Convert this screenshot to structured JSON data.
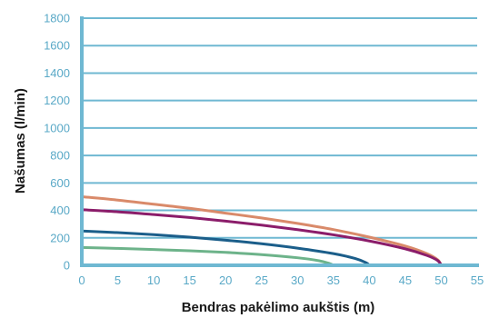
{
  "chart_data": {
    "type": "line",
    "title": "",
    "xlabel": "Bendras pakėlimo aukštis (m)",
    "ylabel": "Našumas (l/min)",
    "xlim": [
      0,
      55
    ],
    "ylim": [
      0,
      1800
    ],
    "xticks": [
      "0",
      "5",
      "10",
      "15",
      "20",
      "25",
      "30",
      "35",
      "40",
      "45",
      "50",
      "55"
    ],
    "yticks": [
      "0",
      "200",
      "400",
      "600",
      "800",
      "1000",
      "1200",
      "1400",
      "1600",
      "1800"
    ],
    "grid": "horizontal",
    "colors": {
      "axis": "#6fb8d2",
      "grid": "#6fb8d2"
    },
    "series": [
      {
        "color": "#d98a6a",
        "x": [
          0,
          5,
          10,
          15,
          20,
          25,
          30,
          35,
          40,
          45,
          48,
          49.5,
          50
        ],
        "y": [
          500,
          475,
          445,
          415,
          380,
          345,
          305,
          260,
          205,
          140,
          85,
          40,
          0
        ]
      },
      {
        "color": "#8b1d6a",
        "x": [
          0,
          5,
          10,
          15,
          20,
          25,
          30,
          35,
          40,
          45,
          48,
          49.5,
          50
        ],
        "y": [
          405,
          390,
          370,
          348,
          322,
          293,
          260,
          222,
          177,
          120,
          72,
          35,
          0
        ]
      },
      {
        "color": "#1b5e8a",
        "x": [
          0,
          5,
          10,
          15,
          20,
          25,
          30,
          35,
          38,
          39.5,
          40
        ],
        "y": [
          250,
          238,
          223,
          205,
          183,
          157,
          125,
          85,
          50,
          20,
          0
        ]
      },
      {
        "color": "#6db38a",
        "x": [
          0,
          5,
          10,
          15,
          20,
          25,
          30,
          33,
          34.5,
          35
        ],
        "y": [
          130,
          123,
          115,
          106,
          94,
          78,
          55,
          33,
          12,
          0
        ]
      }
    ]
  }
}
